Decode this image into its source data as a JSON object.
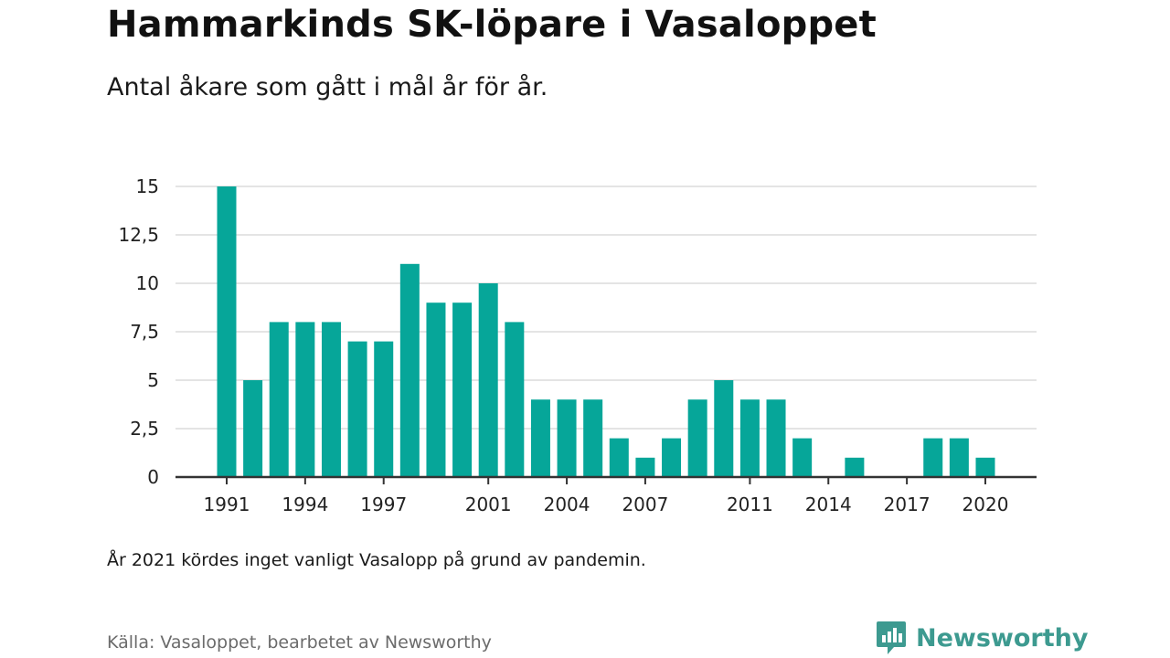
{
  "title": "Hammarkinds SK-löpare i Vasaloppet",
  "subtitle": "Antal åkare som gått i mål år för år.",
  "note": "År 2021 kördes inget vanligt Vasalopp på grund av pandemin.",
  "source": "Källa: Vasaloppet, bearbetet av Newsworthy",
  "brand": {
    "name": "Newsworthy",
    "logo_icon": "newsworthy-chart-logo-icon"
  },
  "colors": {
    "bar": "#06a699",
    "grid": "#dcdcdc",
    "axis": "#333333",
    "brand": "#3d9a90"
  },
  "chart_data": {
    "type": "bar",
    "categories": [
      1991,
      1992,
      1993,
      1994,
      1995,
      1996,
      1997,
      1998,
      1999,
      2000,
      2001,
      2002,
      2003,
      2004,
      2005,
      2006,
      2007,
      2008,
      2009,
      2010,
      2011,
      2012,
      2013,
      2014,
      2015,
      2016,
      2017,
      2018,
      2019,
      2020
    ],
    "values": [
      15,
      5,
      8,
      8,
      8,
      7,
      7,
      11,
      9,
      9,
      10,
      8,
      4,
      4,
      4,
      2,
      1,
      2,
      4,
      5,
      4,
      4,
      2,
      0,
      1,
      0,
      0,
      2,
      2,
      1
    ],
    "x_tick_labels": [
      "1991",
      "1994",
      "1997",
      "2001",
      "2004",
      "2007",
      "2011",
      "2014",
      "2017",
      "2020"
    ],
    "y_ticks": [
      0,
      2.5,
      5,
      7.5,
      10,
      12.5,
      15
    ],
    "y_tick_labels": [
      "0",
      "2,5",
      "5",
      "7,5",
      "10",
      "12,5",
      "15"
    ],
    "ylim": [
      0,
      15
    ],
    "grid": true,
    "legend": "none"
  }
}
